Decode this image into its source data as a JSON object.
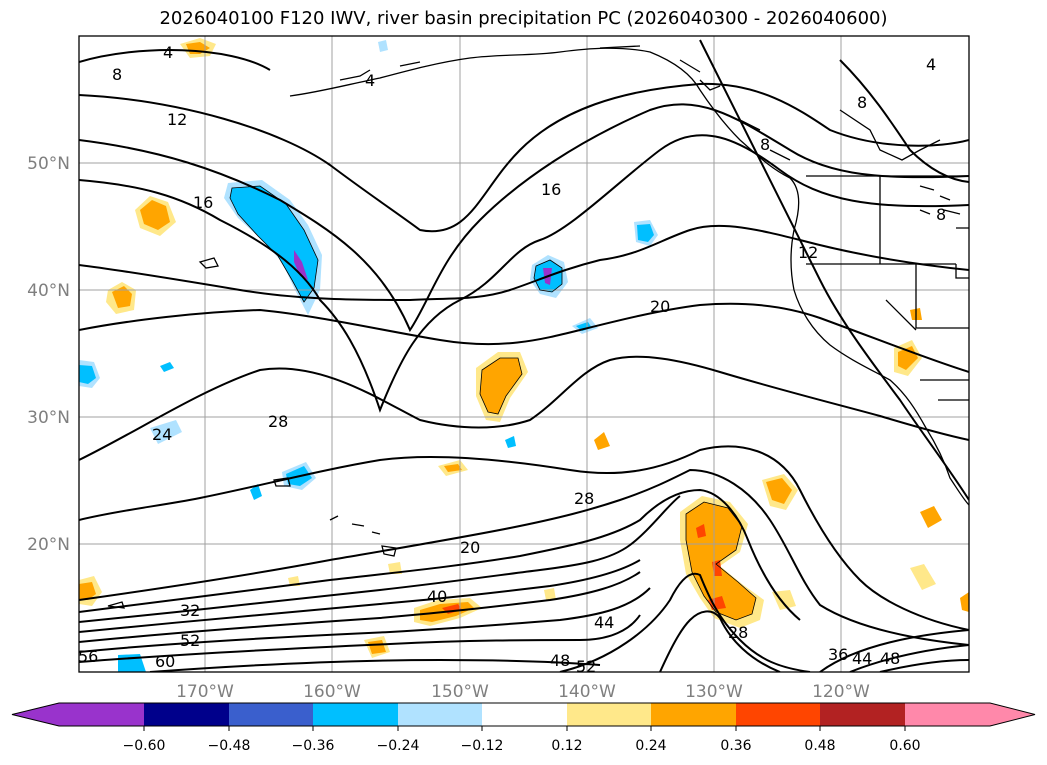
{
  "title": "2026040100 F120 IWV, river basin precipitation PC (2026040300 - 2026040600)",
  "map": {
    "lon_labels": [
      "170°W",
      "160°W",
      "150°W",
      "140°W",
      "130°W",
      "120°W"
    ],
    "lat_labels": [
      "50°N",
      "40°N",
      "30°N",
      "20°N"
    ],
    "contour_labels": [
      "4",
      "4",
      "4",
      "8",
      "8",
      "8",
      "8",
      "12",
      "12",
      "16",
      "16",
      "20",
      "20",
      "24",
      "28",
      "28",
      "28",
      "32",
      "36",
      "40",
      "44",
      "44",
      "48",
      "48",
      "52",
      "52",
      "56",
      "60"
    ]
  },
  "colorbar": {
    "tick_labels": [
      "−0.60",
      "−0.48",
      "−0.36",
      "−0.24",
      "−0.12",
      "0.12",
      "0.24",
      "0.36",
      "0.48",
      "0.60"
    ],
    "colors": [
      "#9933cc",
      "#00008b",
      "#3a5fcd",
      "#00bfff",
      "#b0e2ff",
      "#ffffff",
      "#ffe88a",
      "#ffa500",
      "#ff4500",
      "#b22222",
      "#ff88aa"
    ]
  }
}
